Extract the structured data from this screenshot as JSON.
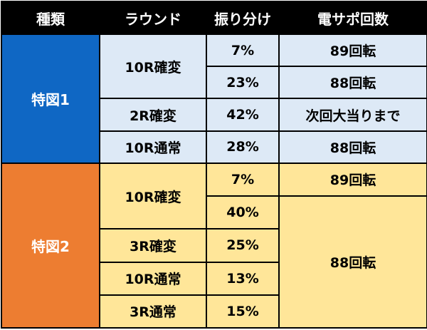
{
  "table": {
    "headers": [
      "種類",
      "ラウンド",
      "振り分け",
      "電サポ回数"
    ],
    "group1": {
      "type": "特図1",
      "rows": [
        {
          "round": "10R確変",
          "ratio": "7%",
          "support": "89回転"
        },
        {
          "round": "",
          "ratio": "23%",
          "support": "88回転"
        },
        {
          "round": "2R確変",
          "ratio": "42%",
          "support": "次回大当りまで"
        },
        {
          "round": "10R通常",
          "ratio": "28%",
          "support": "88回転"
        }
      ]
    },
    "group2": {
      "type": "特図2",
      "rows": [
        {
          "round": "10R確変",
          "ratio": "7%",
          "support": "89回転"
        },
        {
          "round": "",
          "ratio": "40%",
          "support": "88回転"
        },
        {
          "round": "3R確変",
          "ratio": "25%",
          "support": ""
        },
        {
          "round": "10R通常",
          "ratio": "13%",
          "support": ""
        },
        {
          "round": "3R通常",
          "ratio": "15%",
          "support": ""
        }
      ]
    }
  },
  "colors": {
    "header_bg": "#000000",
    "group1_accent": "#0f67c4",
    "group1_light": "#dde9f6",
    "group2_accent": "#ed7d31",
    "group2_light": "#ffe699"
  }
}
